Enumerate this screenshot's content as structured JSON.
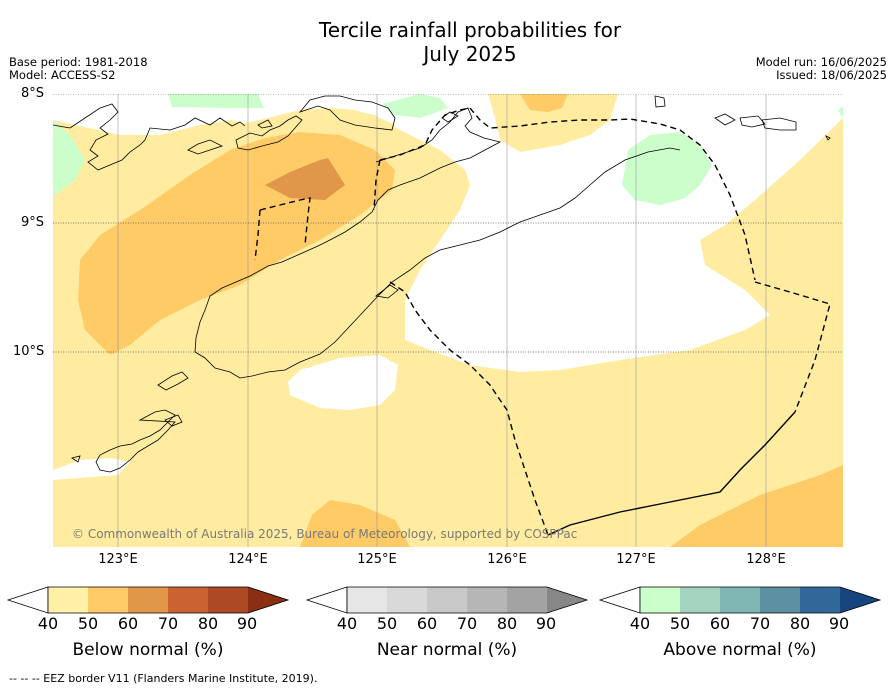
{
  "title_line1": "Tercile rainfall probabilities for",
  "title_line2": "July 2025",
  "base_period": "Base period: 1981-2018",
  "model": "Model: ACCESS-S2",
  "model_run": "Model run: 16/06/2025",
  "issued": "Issued: 18/06/2025",
  "lat_labels": [
    "8°S",
    "9°S",
    "10°S"
  ],
  "lon_labels": [
    "123°E",
    "124°E",
    "125°E",
    "126°E",
    "127°E",
    "128°E"
  ],
  "copyright": "© Commonwealth of Australia 2025, Bureau of Meteorology, supported by COSPPac",
  "footer": "--  --  -- EEZ border V11 (Flanders Marine Institute, 2019).",
  "colorbars": [
    {
      "title": "Below normal (%)",
      "ticks": [
        "40",
        "50",
        "60",
        "70",
        "80",
        "90"
      ],
      "colors": [
        "#fff0a8",
        "#fecb66",
        "#e1974a",
        "#cb6331",
        "#ae4925"
      ],
      "extend_color": "#8a2e14"
    },
    {
      "title": "Near normal (%)",
      "ticks": [
        "40",
        "50",
        "60",
        "70",
        "80",
        "90"
      ],
      "colors": [
        "#e6e6e6",
        "#d9d9d9",
        "#c8c8c8",
        "#b6b6b6",
        "#a3a3a3"
      ],
      "extend_color": "#878787"
    },
    {
      "title": "Above normal (%)",
      "ticks": [
        "40",
        "50",
        "60",
        "70",
        "80",
        "90"
      ],
      "colors": [
        "#ccfecc",
        "#a4d6bf",
        "#7fb5b2",
        "#5b8fa2",
        "#2f6899"
      ],
      "extend_color": "#16457f"
    }
  ],
  "colors": {
    "below_40_50": "#ffeca0",
    "below_50_60": "#fecb66",
    "below_60_70": "#e0974a",
    "above_40_50": "#ccfecc"
  }
}
